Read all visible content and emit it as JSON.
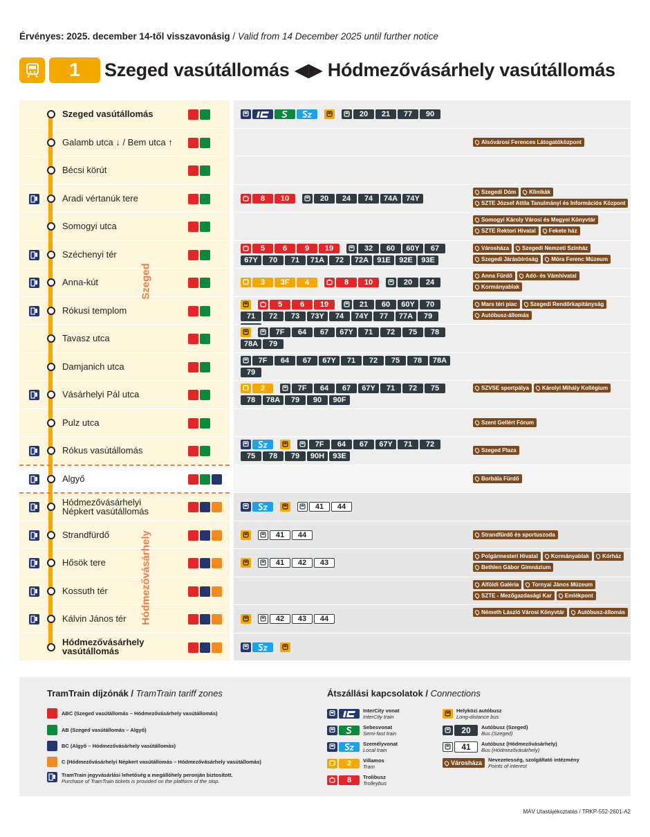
{
  "validity": {
    "hu": "Érvényes: 2025. december 14-től visszavonásig",
    "sep": " / ",
    "en": "Valid from 14 December 2025 until further notice"
  },
  "header": {
    "line_number": "1",
    "title": "Szeged vasútállomás ◀▶ Hódmezővásárhely vasútállomás",
    "accent": "#f5a800"
  },
  "section_labels": {
    "szeged": "Szeged",
    "hmv": "Hódmezővásárhely"
  },
  "colors": {
    "zone_abc": "#e32628",
    "zone_ab": "#0a8a3a",
    "zone_bc": "#23366f",
    "zone_c": "#f18a21",
    "poi": "#7a4a1e",
    "bus": "#2f3b42",
    "tram": "#f5a800",
    "trolley": "#e32628"
  },
  "stops": [
    {
      "name": "Szeged vasútállomás",
      "bold": true,
      "ticket": false,
      "zones": [
        "abc",
        "ab"
      ],
      "section": "szeged",
      "conn": [
        {
          "k": "ico",
          "c": "navy",
          "i": "train"
        },
        {
          "k": "train",
          "t": "ic"
        },
        {
          "k": "train",
          "t": "s"
        },
        {
          "k": "train",
          "t": "sz"
        },
        {
          "k": "gap"
        },
        {
          "k": "ico",
          "c": "yel",
          "i": "coach"
        },
        {
          "k": "gap"
        },
        {
          "k": "ico",
          "c": "dark",
          "i": "bus"
        },
        {
          "k": "bus",
          "v": "20"
        },
        {
          "k": "bus",
          "v": "21"
        },
        {
          "k": "bus",
          "v": "77"
        },
        {
          "k": "bus",
          "v": "90"
        }
      ],
      "pois": []
    },
    {
      "name": "Galamb utca ↓ / Bem utca ↑",
      "bold": false,
      "ticket": false,
      "zones": [
        "abc",
        "ab"
      ],
      "section": "szeged",
      "conn": [],
      "pois": [
        "Alsóvárosi Ferences Látogatóközpont"
      ]
    },
    {
      "name": "Bécsi körút",
      "bold": false,
      "ticket": false,
      "zones": [
        "abc",
        "ab"
      ],
      "section": "szeged",
      "conn": [],
      "pois": []
    },
    {
      "name": "Aradi vértanúk tere",
      "bold": false,
      "ticket": true,
      "zones": [
        "abc",
        "ab"
      ],
      "section": "szeged",
      "conn": [
        {
          "k": "ico",
          "c": "red",
          "i": "trolley"
        },
        {
          "k": "troli",
          "v": "8"
        },
        {
          "k": "troli",
          "v": "10"
        },
        {
          "k": "gap"
        },
        {
          "k": "ico",
          "c": "dark",
          "i": "bus"
        },
        {
          "k": "bus",
          "v": "20"
        },
        {
          "k": "bus",
          "v": "24"
        },
        {
          "k": "bus",
          "v": "74"
        },
        {
          "k": "bus",
          "v": "74A"
        },
        {
          "k": "bus",
          "v": "74Y"
        }
      ],
      "pois": [
        "Szegedi Dóm",
        "Klinikák",
        "SZTE József Attila Tanulmányi és Információs Központ"
      ]
    },
    {
      "name": "Somogyi utca",
      "bold": false,
      "ticket": false,
      "zones": [
        "abc",
        "ab"
      ],
      "section": "szeged",
      "conn": [],
      "pois": [
        "Somogyi Károly Városi és Megyei Könyvtár",
        "SZTE Rektori Hivatal",
        "Fekete ház"
      ]
    },
    {
      "name": "Széchenyi tér",
      "bold": false,
      "ticket": true,
      "zones": [
        "abc",
        "ab"
      ],
      "section": "szeged",
      "conn": [
        {
          "k": "ico",
          "c": "red",
          "i": "trolley"
        },
        {
          "k": "troli",
          "v": "5"
        },
        {
          "k": "troli",
          "v": "6"
        },
        {
          "k": "troli",
          "v": "9"
        },
        {
          "k": "troli",
          "v": "19"
        },
        {
          "k": "gap"
        },
        {
          "k": "ico",
          "c": "dark",
          "i": "bus"
        },
        {
          "k": "bus",
          "v": "32"
        },
        {
          "k": "bus",
          "v": "60"
        },
        {
          "k": "bus",
          "v": "60Y"
        },
        {
          "k": "bus",
          "v": "67"
        },
        {
          "k": "bus",
          "v": "67Y"
        },
        {
          "k": "bus",
          "v": "70"
        },
        {
          "k": "bus",
          "v": "71"
        },
        {
          "k": "bus",
          "v": "71A"
        },
        {
          "k": "bus",
          "v": "72"
        },
        {
          "k": "bus",
          "v": "72A"
        },
        {
          "k": "bus",
          "v": "91E"
        },
        {
          "k": "bus",
          "v": "92E"
        },
        {
          "k": "bus",
          "v": "93E"
        }
      ],
      "pois": [
        "Városháza",
        "Szegedi Nemzeti Színház",
        "Szegedi Járásbíróság",
        "Móra Ferenc Múzeum"
      ]
    },
    {
      "name": "Anna-kút",
      "bold": false,
      "ticket": true,
      "zones": [
        "abc",
        "ab"
      ],
      "section": "szeged",
      "conn": [
        {
          "k": "ico",
          "c": "yel",
          "i": "tram"
        },
        {
          "k": "tram",
          "v": "3"
        },
        {
          "k": "tram",
          "v": "3F"
        },
        {
          "k": "tram",
          "v": "4"
        },
        {
          "k": "gap"
        },
        {
          "k": "ico",
          "c": "red",
          "i": "trolley"
        },
        {
          "k": "troli",
          "v": "8"
        },
        {
          "k": "troli",
          "v": "10"
        },
        {
          "k": "gap"
        },
        {
          "k": "ico",
          "c": "dark",
          "i": "bus"
        },
        {
          "k": "bus",
          "v": "20"
        },
        {
          "k": "bus",
          "v": "24"
        }
      ],
      "pois": [
        "Anna Fürdő",
        "Adó- és Vámhivatal",
        "Kormányablak"
      ]
    },
    {
      "name": "Rókusi templom",
      "bold": false,
      "ticket": true,
      "zones": [
        "abc",
        "ab"
      ],
      "section": "szeged",
      "conn": [
        {
          "k": "ico",
          "c": "yel",
          "i": "coach"
        },
        {
          "k": "gap"
        },
        {
          "k": "ico",
          "c": "red",
          "i": "trolley"
        },
        {
          "k": "troli",
          "v": "5"
        },
        {
          "k": "troli",
          "v": "6"
        },
        {
          "k": "troli",
          "v": "19"
        },
        {
          "k": "gap"
        },
        {
          "k": "ico",
          "c": "dark",
          "i": "bus"
        },
        {
          "k": "bus",
          "v": "21"
        },
        {
          "k": "bus",
          "v": "60"
        },
        {
          "k": "bus",
          "v": "60Y"
        },
        {
          "k": "bus",
          "v": "70"
        },
        {
          "k": "bus",
          "v": "71"
        },
        {
          "k": "bus",
          "v": "72"
        },
        {
          "k": "bus",
          "v": "73"
        },
        {
          "k": "bus",
          "v": "73Y"
        },
        {
          "k": "bus",
          "v": "74"
        },
        {
          "k": "bus",
          "v": "74Y"
        },
        {
          "k": "bus",
          "v": "77"
        },
        {
          "k": "bus",
          "v": "77A"
        },
        {
          "k": "bus",
          "v": "79"
        },
        {
          "k": "bus",
          "v": "93E"
        }
      ],
      "pois": [
        "Mars téri piac",
        "Szegedi Rendőrkapitányság",
        "Autóbusz-állomás"
      ]
    },
    {
      "name": "Tavasz utca",
      "bold": false,
      "ticket": false,
      "zones": [
        "abc",
        "ab"
      ],
      "section": "szeged",
      "conn": [
        {
          "k": "ico",
          "c": "yel",
          "i": "coach"
        },
        {
          "k": "gap"
        },
        {
          "k": "ico",
          "c": "dark",
          "i": "bus"
        },
        {
          "k": "bus",
          "v": "7F"
        },
        {
          "k": "bus",
          "v": "64"
        },
        {
          "k": "bus",
          "v": "67"
        },
        {
          "k": "bus",
          "v": "67Y"
        },
        {
          "k": "bus",
          "v": "71"
        },
        {
          "k": "bus",
          "v": "72"
        },
        {
          "k": "bus",
          "v": "75"
        },
        {
          "k": "bus",
          "v": "78"
        },
        {
          "k": "bus",
          "v": "78A"
        },
        {
          "k": "bus",
          "v": "79"
        }
      ],
      "pois": []
    },
    {
      "name": "Damjanich utca",
      "bold": false,
      "ticket": false,
      "zones": [
        "abc",
        "ab"
      ],
      "section": "szeged",
      "conn": [
        {
          "k": "ico",
          "c": "dark",
          "i": "bus"
        },
        {
          "k": "bus",
          "v": "7F"
        },
        {
          "k": "bus",
          "v": "64"
        },
        {
          "k": "bus",
          "v": "67"
        },
        {
          "k": "bus",
          "v": "67Y"
        },
        {
          "k": "bus",
          "v": "71"
        },
        {
          "k": "bus",
          "v": "72"
        },
        {
          "k": "bus",
          "v": "75"
        },
        {
          "k": "bus",
          "v": "78"
        },
        {
          "k": "bus",
          "v": "78A"
        },
        {
          "k": "bus",
          "v": "79"
        }
      ],
      "pois": []
    },
    {
      "name": "Vásárhelyi Pál utca",
      "bold": false,
      "ticket": true,
      "zones": [
        "abc",
        "ab"
      ],
      "section": "szeged",
      "conn": [
        {
          "k": "ico",
          "c": "yel",
          "i": "tram"
        },
        {
          "k": "tram",
          "v": "2"
        },
        {
          "k": "gap"
        },
        {
          "k": "ico",
          "c": "dark",
          "i": "bus"
        },
        {
          "k": "bus",
          "v": "7F"
        },
        {
          "k": "bus",
          "v": "64"
        },
        {
          "k": "bus",
          "v": "67"
        },
        {
          "k": "bus",
          "v": "67Y"
        },
        {
          "k": "bus",
          "v": "71"
        },
        {
          "k": "bus",
          "v": "72"
        },
        {
          "k": "bus",
          "v": "75"
        },
        {
          "k": "bus",
          "v": "78"
        },
        {
          "k": "bus",
          "v": "78A"
        },
        {
          "k": "bus",
          "v": "79"
        },
        {
          "k": "bus",
          "v": "90"
        },
        {
          "k": "bus",
          "v": "90F"
        }
      ],
      "pois": [
        "SZVSE sportpálya",
        "Károlyi Mihály Kollégium"
      ]
    },
    {
      "name": "Pulz utca",
      "bold": false,
      "ticket": false,
      "zones": [
        "abc",
        "ab"
      ],
      "section": "szeged",
      "conn": [],
      "pois": [
        "Szent Gellért Fórum"
      ]
    },
    {
      "name": "Rókus vasútállomás",
      "bold": false,
      "ticket": true,
      "zones": [
        "abc",
        "ab"
      ],
      "section": "szeged",
      "conn": [
        {
          "k": "ico",
          "c": "navy",
          "i": "train"
        },
        {
          "k": "train",
          "t": "sz"
        },
        {
          "k": "gap"
        },
        {
          "k": "ico",
          "c": "yel",
          "i": "coach"
        },
        {
          "k": "gap"
        },
        {
          "k": "ico",
          "c": "dark",
          "i": "bus"
        },
        {
          "k": "bus",
          "v": "7F"
        },
        {
          "k": "bus",
          "v": "64"
        },
        {
          "k": "bus",
          "v": "67"
        },
        {
          "k": "bus",
          "v": "67Y"
        },
        {
          "k": "bus",
          "v": "71"
        },
        {
          "k": "bus",
          "v": "72"
        },
        {
          "k": "bus",
          "v": "75"
        },
        {
          "k": "bus",
          "v": "78"
        },
        {
          "k": "bus",
          "v": "79"
        },
        {
          "k": "bus",
          "v": "90H"
        },
        {
          "k": "bus",
          "v": "93E"
        }
      ],
      "pois": [
        "Szeged Plaza"
      ]
    },
    {
      "name": "Algyő",
      "bold": false,
      "ticket": true,
      "zones": [
        "abc",
        "ab",
        "bc"
      ],
      "section": "algyo",
      "conn": [],
      "pois": [
        "Borbála Fürdő"
      ]
    },
    {
      "name": "Hódmezővásárhelyi\nNépkert vasútállomás",
      "bold": false,
      "ticket": true,
      "zones": [
        "abc",
        "bc",
        "c"
      ],
      "section": "hmv",
      "conn": [
        {
          "k": "ico",
          "c": "navy",
          "i": "train"
        },
        {
          "k": "train",
          "t": "sz"
        },
        {
          "k": "gap"
        },
        {
          "k": "ico",
          "c": "yel",
          "i": "coach"
        },
        {
          "k": "gap"
        },
        {
          "k": "ico",
          "c": "ol",
          "i": "bus"
        },
        {
          "k": "bushmv",
          "v": "41"
        },
        {
          "k": "bushmv",
          "v": "44"
        }
      ],
      "pois": []
    },
    {
      "name": "Strandfürdő",
      "bold": false,
      "ticket": true,
      "zones": [
        "abc",
        "bc",
        "c"
      ],
      "section": "hmv",
      "conn": [
        {
          "k": "ico",
          "c": "yel",
          "i": "coach"
        },
        {
          "k": "gap"
        },
        {
          "k": "ico",
          "c": "ol",
          "i": "bus"
        },
        {
          "k": "bushmv",
          "v": "41"
        },
        {
          "k": "bushmv",
          "v": "44"
        }
      ],
      "pois": [
        "Strandfürdő és sportuszoda"
      ]
    },
    {
      "name": "Hősök tere",
      "bold": false,
      "ticket": true,
      "zones": [
        "abc",
        "bc",
        "c"
      ],
      "section": "hmv",
      "conn": [
        {
          "k": "ico",
          "c": "yel",
          "i": "coach"
        },
        {
          "k": "gap"
        },
        {
          "k": "ico",
          "c": "ol",
          "i": "bus"
        },
        {
          "k": "bushmv",
          "v": "41"
        },
        {
          "k": "bushmv",
          "v": "42"
        },
        {
          "k": "bushmv",
          "v": "43"
        }
      ],
      "pois": [
        "Polgármesteri Hivatal",
        "Kormányablak",
        "Kórház",
        "Bethlen Gábor Gimnázium"
      ]
    },
    {
      "name": "Kossuth tér",
      "bold": false,
      "ticket": true,
      "zones": [
        "abc",
        "bc",
        "c"
      ],
      "section": "hmv",
      "conn": [],
      "pois": [
        "Alföldi Galéria",
        "Tornyai János Múzeum",
        "SZTE - Mezőgazdasági Kar",
        "Emlékpont"
      ]
    },
    {
      "name": "Kálvin János tér",
      "bold": false,
      "ticket": true,
      "zones": [
        "abc",
        "bc",
        "c"
      ],
      "section": "hmv",
      "conn": [
        {
          "k": "ico",
          "c": "yel",
          "i": "coach"
        },
        {
          "k": "gap"
        },
        {
          "k": "ico",
          "c": "ol",
          "i": "bus"
        },
        {
          "k": "bushmv",
          "v": "42"
        },
        {
          "k": "bushmv",
          "v": "43"
        },
        {
          "k": "bushmv",
          "v": "44"
        }
      ],
      "pois": [
        "Németh László Városi Könyvtár",
        "Autóbusz-állomás"
      ]
    },
    {
      "name": "Hódmezővásárhely\nvasútállomás",
      "bold": true,
      "ticket": false,
      "zones": [
        "abc",
        "bc",
        "c"
      ],
      "section": "hmv",
      "conn": [
        {
          "k": "ico",
          "c": "navy",
          "i": "train"
        },
        {
          "k": "train",
          "t": "sz"
        },
        {
          "k": "gap"
        },
        {
          "k": "ico",
          "c": "yel",
          "i": "coach"
        }
      ],
      "pois": []
    }
  ],
  "legend": {
    "zones_title": "TramTrain díjzónák",
    "zones_title_en": "TramTrain tariff zones",
    "zones": [
      {
        "color": "abc",
        "text": "ABC (Szeged vasútállomás – Hódmezővásárhely vasútállomás)"
      },
      {
        "color": "ab",
        "text": "AB (Szeged vasútállomás – Algyő)"
      },
      {
        "color": "bc",
        "text": "BC (Algyő – Hódmezővásárhely vasútállomás)"
      },
      {
        "color": "c",
        "text": "C (Hódmezővásárhelyi Népkert vasútállomás – Hódmezővásárhely vasútállomás)"
      }
    ],
    "ticket_note": "TramTrain jegyvásárlási lehetőség a megállóhely peronján biztosított.",
    "ticket_note_en": "Purchase of TramTrain tickets is provided on the platform of the stop.",
    "conn_title": "Átszállási kapcsolatok",
    "conn_title_en": "Connections",
    "items": [
      {
        "label": "InterCity vonat",
        "en": "InterCity train"
      },
      {
        "label": "Sebesvonat",
        "en": "Semi-fast train"
      },
      {
        "label": "Személyvonat",
        "en": "Local train"
      },
      {
        "label": "Villamos",
        "en": "Tram",
        "chip": "2"
      },
      {
        "label": "Trolibusz",
        "en": "Trolleybus",
        "chip": "8"
      },
      {
        "label": "Helyközi autóbusz",
        "en": "Long-distance bus"
      },
      {
        "label": "Autóbusz (Szeged)",
        "en": "Bus (Szeged)",
        "chip": "20"
      },
      {
        "label": "Autóbusz (Hódmezővásárhely)",
        "en": "Bus (Hódmezővásárhely)",
        "chip": "41"
      },
      {
        "label": "Nevezetesség, szolgáltató intézmény",
        "en": "Points of interest",
        "chip": "Városháza"
      }
    ]
  },
  "footer": "MÁV Utastájékoztatás / TRKP-552-2601-A2"
}
